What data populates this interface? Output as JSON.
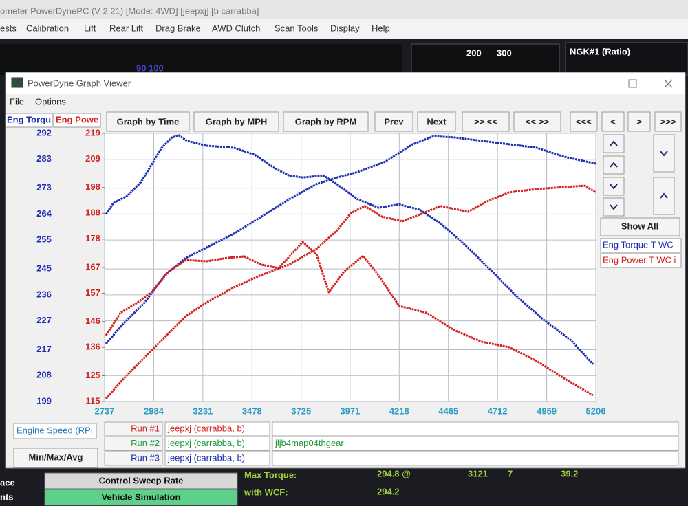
{
  "app": {
    "title": "ometer PowerDynePC (V 2.21) [Mode: 4WD] [jeepxj] [b carrabba]",
    "menu": [
      "ests",
      "Calibration",
      "Lift",
      "Rear Lift",
      "Drag Brake",
      "AWD Clutch",
      "Scan Tools",
      "Display",
      "Help"
    ],
    "gauge_left": "90 100",
    "gauge_labels": [
      "200",
      "300"
    ],
    "ngk_label": "NGK#1 (Ratio)",
    "status": {
      "left_labels": [
        "ace",
        "nts"
      ],
      "buttons": [
        "Control Sweep Rate",
        "Vehicle Simulation"
      ],
      "max_torque_label": "Max Torque:",
      "max_torque_value": "294.8 @",
      "max_torque_rpm": "3121",
      "max_torque_extra": "7",
      "max_torque_mph": "39.2",
      "wcf_label": "with WCF:",
      "wcf_value": "294.2"
    }
  },
  "window": {
    "title": "PowerDyne Graph Viewer",
    "menu": [
      "File",
      "Options"
    ],
    "toolbar": [
      "Graph by Time",
      "Graph by MPH",
      "Graph by RPM",
      "Prev",
      "Next",
      ">> <<",
      "<< >>",
      "<<<",
      "<",
      ">",
      ">>>"
    ],
    "show_all": "Show All",
    "legend": [
      "Eng Torque T WC",
      "Eng Power T WC i"
    ],
    "x_axis_label": "Engine Speed (RPI",
    "min_max_button": "Min/Max/Avg",
    "runs": [
      {
        "label": "Run #1",
        "name": "jeepxj (carrabba, b)"
      },
      {
        "label": "Run #2",
        "name": "jeepxj (carrabba, b)",
        "note": "jljb4map04thgear"
      },
      {
        "label": "Run #3",
        "name": "jeepxj (carrabba, b)"
      }
    ]
  },
  "chart_data": {
    "type": "line",
    "y_axis_label": "Eng Torqu",
    "y2_axis_label": "Eng Powe",
    "xlim": [
      2737,
      5206
    ],
    "xticks": [
      2737,
      2984,
      3231,
      3478,
      3725,
      3971,
      4218,
      4465,
      4712,
      4959,
      5206
    ],
    "ylim": [
      199,
      292
    ],
    "yticks": [
      292,
      283,
      273,
      264,
      255,
      245,
      236,
      227,
      217,
      208,
      199
    ],
    "y2lim": [
      115,
      219
    ],
    "y2ticks": [
      219,
      209,
      198,
      188,
      178,
      167,
      157,
      146,
      136,
      125,
      115
    ],
    "grid": true,
    "series": [
      {
        "color": "#1b2fb0",
        "axis": "y",
        "x": [
          2744,
          2782,
          2851,
          2920,
          2972,
          3024,
          3076,
          3110,
          3152,
          3249,
          3387,
          3491,
          3595,
          3664,
          3733,
          3837,
          3906,
          4010,
          4114,
          4217,
          4321,
          4425,
          4563,
          4702,
          4805,
          4943,
          5082,
          5193
        ],
        "values": [
          263.9,
          267.9,
          270.3,
          275.1,
          281.0,
          287.0,
          290.6,
          291.3,
          289.4,
          287.7,
          287.0,
          284.6,
          279.8,
          277.4,
          276.7,
          277.4,
          274.3,
          269.1,
          266.2,
          267.4,
          265.5,
          260.8,
          252.4,
          242.9,
          235.7,
          227.4,
          220.2,
          211.9
        ]
      },
      {
        "color": "#1b2fb0",
        "axis": "y",
        "x": [
          2744,
          2834,
          2938,
          3041,
          3145,
          3249,
          3387,
          3525,
          3664,
          3802,
          3906,
          4010,
          4148,
          4286,
          4390,
          4494,
          4632,
          4770,
          4909,
          5047,
          5206
        ],
        "values": [
          219.0,
          226.2,
          233.3,
          242.9,
          248.8,
          252.4,
          257.2,
          263.1,
          269.1,
          274.4,
          276.7,
          278.6,
          282.2,
          288.2,
          291.0,
          290.6,
          289.4,
          288.2,
          287.0,
          283.9,
          281.5
        ]
      },
      {
        "color": "#d42222",
        "axis": "y2",
        "x": [
          2744,
          2817,
          2903,
          2972,
          3059,
          3145,
          3249,
          3353,
          3439,
          3525,
          3612,
          3733,
          3802,
          3864,
          3940,
          4037,
          4113,
          4217,
          4355,
          4494,
          4632,
          4770,
          4909,
          5047,
          5192
        ],
        "values": [
          140.6,
          149.4,
          153.4,
          157.4,
          165.4,
          169.9,
          169.4,
          170.7,
          171.3,
          168.1,
          166.7,
          176.9,
          172.1,
          157.4,
          165.4,
          171.5,
          164.1,
          152.1,
          149.4,
          142.7,
          138.2,
          136.1,
          130.7,
          124.0,
          117.4
        ]
      },
      {
        "color": "#d42222",
        "axis": "y2",
        "x": [
          2744,
          2834,
          2938,
          3041,
          3145,
          3249,
          3387,
          3525,
          3664,
          3802,
          3906,
          3975,
          4044,
          4131,
          4234,
          4321,
          4425,
          4563,
          4667,
          4770,
          4909,
          5047,
          5151,
          5206
        ],
        "values": [
          116.1,
          124.0,
          132.1,
          140.1,
          148.1,
          153.4,
          159.3,
          164.1,
          168.1,
          174.2,
          181.4,
          188.1,
          190.8,
          186.7,
          184.9,
          187.5,
          190.8,
          188.6,
          192.9,
          196.1,
          197.4,
          198.2,
          198.7,
          196.1
        ]
      }
    ]
  }
}
